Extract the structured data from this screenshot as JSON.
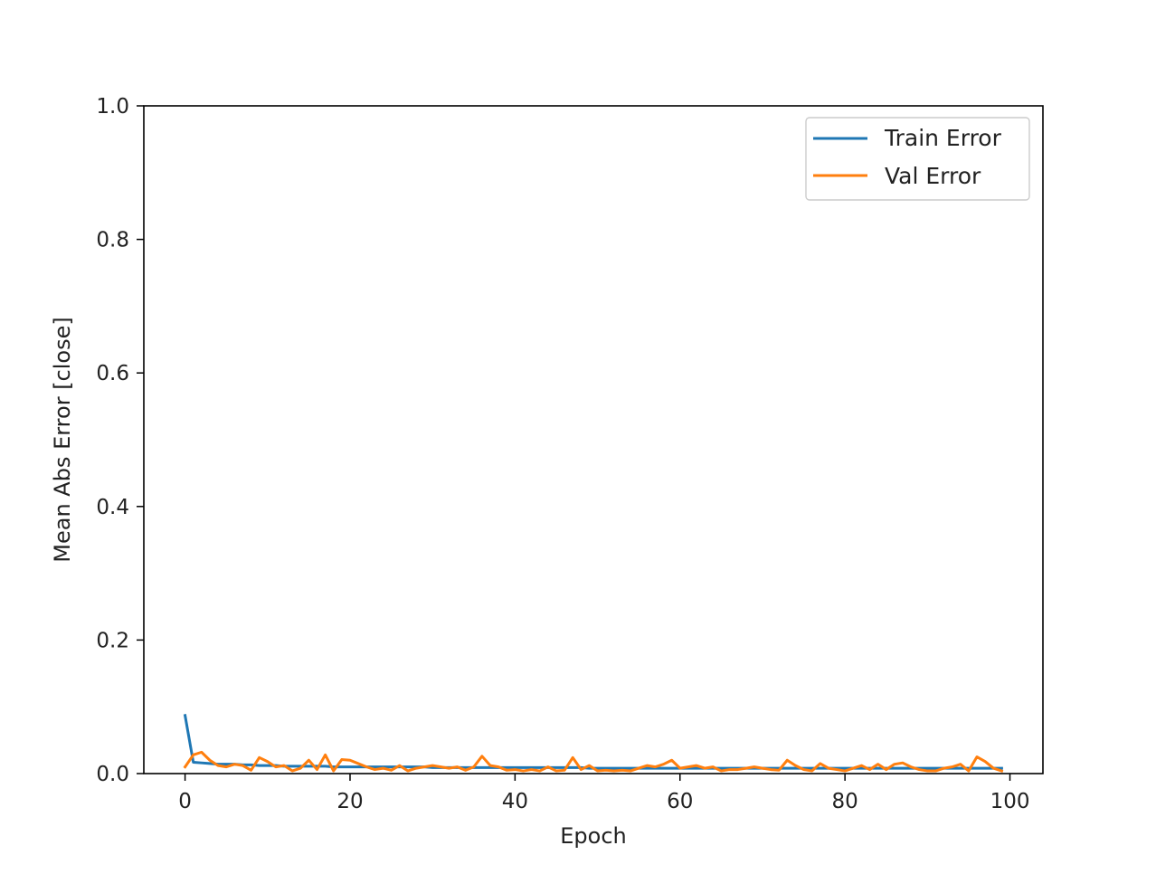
{
  "chart_data": {
    "type": "line",
    "title": "",
    "xlabel": "Epoch",
    "ylabel": "Mean Abs Error [close]",
    "xlim": [
      -5,
      104
    ],
    "ylim": [
      0,
      1.0
    ],
    "xticks": [
      0,
      20,
      40,
      60,
      80,
      100
    ],
    "yticks": [
      0.0,
      0.2,
      0.4,
      0.6,
      0.8,
      1.0
    ],
    "xtick_labels": [
      "0",
      "20",
      "40",
      "60",
      "80",
      "100"
    ],
    "ytick_labels": [
      "0.0",
      "0.2",
      "0.4",
      "0.6",
      "0.8",
      "1.0"
    ],
    "grid": false,
    "legend_position": "top-right",
    "series": [
      {
        "name": "Train Error",
        "color": "#1f77b4",
        "x": [
          0,
          1,
          2,
          3,
          4,
          5,
          6,
          7,
          8,
          9,
          10,
          11,
          12,
          13,
          14,
          15,
          16,
          17,
          18,
          19,
          20,
          21,
          22,
          23,
          24,
          25,
          26,
          27,
          28,
          29,
          30,
          31,
          32,
          33,
          34,
          35,
          36,
          37,
          38,
          39,
          40,
          41,
          42,
          43,
          44,
          45,
          46,
          47,
          48,
          49,
          50,
          51,
          52,
          53,
          54,
          55,
          56,
          57,
          58,
          59,
          60,
          61,
          62,
          63,
          64,
          65,
          66,
          67,
          68,
          69,
          70,
          71,
          72,
          73,
          74,
          75,
          76,
          77,
          78,
          79,
          80,
          81,
          82,
          83,
          84,
          85,
          86,
          87,
          88,
          89,
          90,
          91,
          92,
          93,
          94,
          95,
          96,
          97,
          98,
          99
        ],
        "values": [
          0.087,
          0.017,
          0.016,
          0.015,
          0.014,
          0.014,
          0.014,
          0.013,
          0.013,
          0.012,
          0.012,
          0.012,
          0.011,
          0.011,
          0.011,
          0.011,
          0.011,
          0.011,
          0.01,
          0.01,
          0.01,
          0.01,
          0.01,
          0.01,
          0.01,
          0.01,
          0.01,
          0.01,
          0.01,
          0.01,
          0.009,
          0.009,
          0.009,
          0.009,
          0.009,
          0.009,
          0.009,
          0.009,
          0.009,
          0.009,
          0.009,
          0.009,
          0.009,
          0.009,
          0.009,
          0.009,
          0.009,
          0.009,
          0.009,
          0.008,
          0.008,
          0.008,
          0.008,
          0.008,
          0.008,
          0.008,
          0.008,
          0.008,
          0.008,
          0.008,
          0.008,
          0.008,
          0.008,
          0.008,
          0.008,
          0.008,
          0.008,
          0.008,
          0.008,
          0.008,
          0.008,
          0.008,
          0.008,
          0.008,
          0.008,
          0.008,
          0.008,
          0.008,
          0.008,
          0.008,
          0.008,
          0.008,
          0.008,
          0.008,
          0.008,
          0.008,
          0.008,
          0.008,
          0.008,
          0.008,
          0.008,
          0.008,
          0.008,
          0.008,
          0.008,
          0.008,
          0.008,
          0.008,
          0.008,
          0.008
        ]
      },
      {
        "name": "Val Error",
        "color": "#ff7f0e",
        "x": [
          0,
          1,
          2,
          3,
          4,
          5,
          6,
          7,
          8,
          9,
          10,
          11,
          12,
          13,
          14,
          15,
          16,
          17,
          18,
          19,
          20,
          21,
          22,
          23,
          24,
          25,
          26,
          27,
          28,
          29,
          30,
          31,
          32,
          33,
          34,
          35,
          36,
          37,
          38,
          39,
          40,
          41,
          42,
          43,
          44,
          45,
          46,
          47,
          48,
          49,
          50,
          51,
          52,
          53,
          54,
          55,
          56,
          57,
          58,
          59,
          60,
          61,
          62,
          63,
          64,
          65,
          66,
          67,
          68,
          69,
          70,
          71,
          72,
          73,
          74,
          75,
          76,
          77,
          78,
          79,
          80,
          81,
          82,
          83,
          84,
          85,
          86,
          87,
          88,
          89,
          90,
          91,
          92,
          93,
          94,
          95,
          96,
          97,
          98,
          99
        ],
        "values": [
          0.01,
          0.028,
          0.032,
          0.02,
          0.012,
          0.01,
          0.014,
          0.012,
          0.005,
          0.024,
          0.018,
          0.01,
          0.012,
          0.004,
          0.008,
          0.02,
          0.006,
          0.028,
          0.004,
          0.021,
          0.02,
          0.015,
          0.01,
          0.006,
          0.008,
          0.005,
          0.012,
          0.004,
          0.008,
          0.01,
          0.012,
          0.01,
          0.008,
          0.01,
          0.005,
          0.01,
          0.026,
          0.012,
          0.01,
          0.005,
          0.006,
          0.004,
          0.006,
          0.004,
          0.01,
          0.004,
          0.005,
          0.024,
          0.006,
          0.012,
          0.004,
          0.005,
          0.004,
          0.005,
          0.004,
          0.008,
          0.012,
          0.01,
          0.014,
          0.02,
          0.008,
          0.01,
          0.012,
          0.008,
          0.01,
          0.004,
          0.006,
          0.006,
          0.008,
          0.01,
          0.008,
          0.006,
          0.005,
          0.02,
          0.012,
          0.006,
          0.004,
          0.015,
          0.008,
          0.006,
          0.004,
          0.008,
          0.012,
          0.006,
          0.014,
          0.006,
          0.014,
          0.016,
          0.01,
          0.006,
          0.004,
          0.004,
          0.008,
          0.01,
          0.014,
          0.004,
          0.025,
          0.018,
          0.008,
          0.004
        ]
      }
    ]
  }
}
